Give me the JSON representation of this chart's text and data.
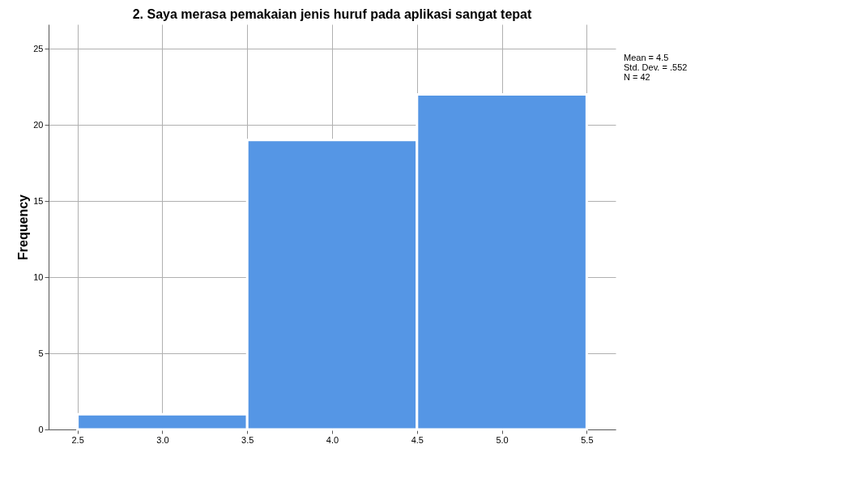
{
  "chart_data": {
    "type": "histogram",
    "title": "2. Saya merasa pemakaian jenis huruf pada aplikasi sangat tepat",
    "ylabel": "Frequency",
    "bins": [
      2.5,
      3.5,
      4.5,
      5.5
    ],
    "values": [
      1,
      19,
      22
    ],
    "color": "#5596e5",
    "xlim": [
      2.33,
      5.67
    ],
    "xticks": [
      {
        "value": 2.5,
        "label": "2.5"
      },
      {
        "value": 3,
        "label": "3.0"
      },
      {
        "value": 3.5,
        "label": "3.5"
      },
      {
        "value": 4,
        "label": "4.0"
      },
      {
        "value": 4.5,
        "label": "4.5"
      },
      {
        "value": 5,
        "label": "5.0"
      },
      {
        "value": 5.5,
        "label": "5.5"
      }
    ],
    "ylim": [
      0,
      26.6
    ],
    "yticks": [
      0,
      5,
      10,
      15,
      20,
      25
    ],
    "grid": true,
    "annotations": [
      "Mean = 4.5",
      "Std. Dev. = .552",
      "N = 42"
    ]
  }
}
